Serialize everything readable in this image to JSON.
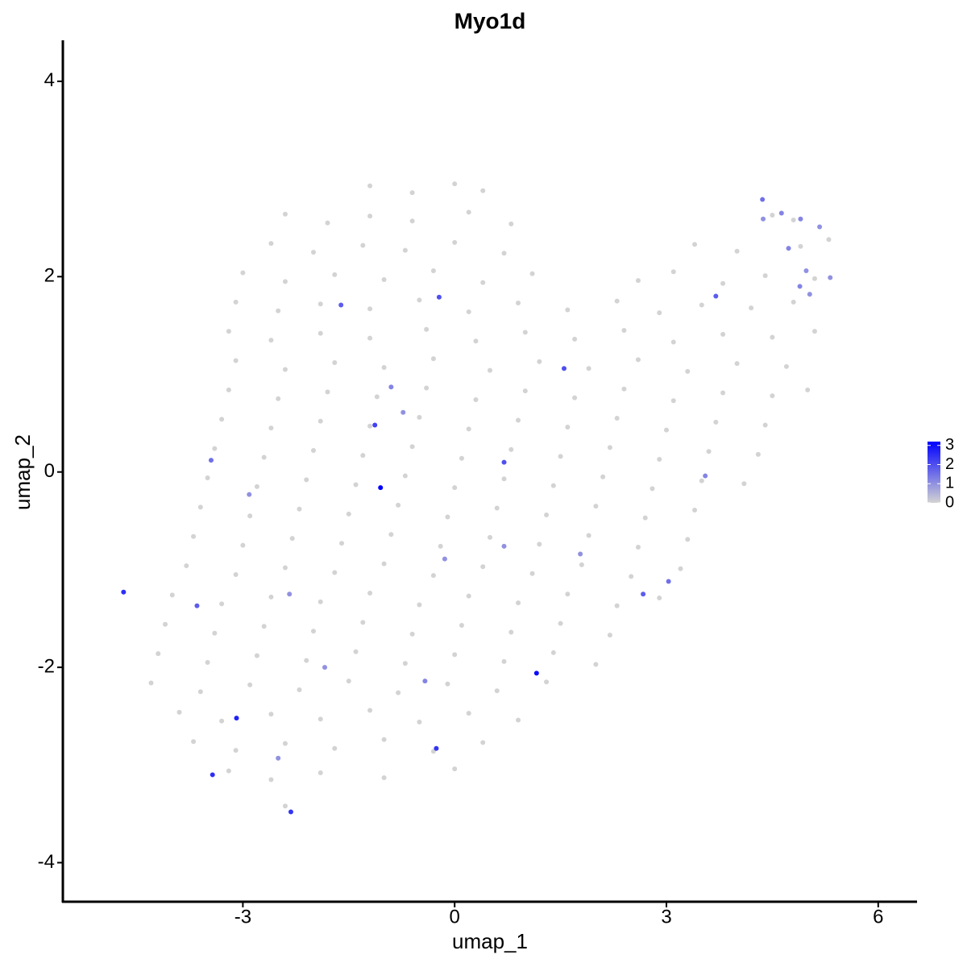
{
  "chart_data": {
    "type": "scatter",
    "title": "Myo1d",
    "x_label": "umap_1",
    "y_label": "umap_2",
    "x": [
      -1.2,
      -0.6,
      0,
      0.4,
      -2.4,
      -1.8,
      -1.2,
      -0.6,
      0.2,
      0.8,
      4.5,
      4.8,
      -2.6,
      -2.0,
      -1.3,
      -0.7,
      0,
      0.7,
      3.4,
      4.0,
      4.9,
      5.3,
      -3.0,
      -2.4,
      -1.7,
      -1.0,
      -0.3,
      0.4,
      1.1,
      2.6,
      3.1,
      3.8,
      4.4,
      5.1,
      -3.1,
      -2.5,
      -1.9,
      -1.2,
      -0.5,
      0.2,
      0.9,
      1.6,
      2.3,
      2.9,
      3.5,
      4.2,
      4.8,
      -3.2,
      -2.6,
      -1.9,
      -1.2,
      -0.4,
      0.3,
      1.0,
      1.7,
      2.4,
      3.1,
      3.8,
      4.5,
      5.1,
      -3.1,
      -2.4,
      -1.7,
      -1.0,
      -0.3,
      0.5,
      1.2,
      1.9,
      2.6,
      3.3,
      4.0,
      4.7,
      -3.2,
      -2.5,
      -1.8,
      -1.1,
      -0.4,
      0.3,
      1.0,
      1.7,
      2.4,
      3.1,
      3.8,
      4.5,
      5.0,
      -3.3,
      -2.6,
      -1.9,
      -1.2,
      -0.5,
      0.2,
      0.9,
      1.6,
      2.3,
      3.0,
      3.7,
      4.4,
      -3.4,
      -2.7,
      -2.0,
      -1.3,
      -0.6,
      0.1,
      0.8,
      1.5,
      2.2,
      2.9,
      3.6,
      4.3,
      -3.5,
      -2.8,
      -2.1,
      -1.4,
      -0.7,
      0,
      0.7,
      1.4,
      2.1,
      2.8,
      3.5,
      4.1,
      -3.6,
      -2.9,
      -2.2,
      -1.5,
      -0.8,
      -0.1,
      0.6,
      1.3,
      2.0,
      2.7,
      3.4,
      -3.7,
      -3.0,
      -2.3,
      -1.6,
      -0.9,
      -0.2,
      0.5,
      1.2,
      1.9,
      2.6,
      3.3,
      -3.8,
      -3.1,
      -2.4,
      -1.7,
      -1.0,
      -0.3,
      0.4,
      1.1,
      1.8,
      2.5,
      3.2,
      -4.0,
      -3.3,
      -2.6,
      -1.9,
      -1.2,
      -0.5,
      0.2,
      0.9,
      1.6,
      2.3,
      2.9,
      -4.1,
      -3.4,
      -2.7,
      -2.0,
      -1.3,
      -0.6,
      0.1,
      0.8,
      1.5,
      2.2,
      -4.2,
      -3.5,
      -2.8,
      -2.1,
      -1.4,
      -0.7,
      0,
      0.7,
      1.4,
      2.0,
      -4.3,
      -3.6,
      -2.9,
      -2.2,
      -1.5,
      -0.8,
      -0.1,
      0.6,
      1.3,
      -3.9,
      -3.3,
      -2.6,
      -1.9,
      -1.2,
      -0.5,
      0.2,
      0.9,
      -3.7,
      -3.1,
      -2.4,
      -1.7,
      -1.0,
      -0.3,
      0.4,
      -3.2,
      -2.6,
      -1.9,
      -1.0,
      0,
      -2.4,
      -4.69,
      -1.05,
      1.16,
      -3.09,
      -3.43,
      -2.32,
      -0.26,
      -1.13,
      0.7,
      1.55,
      -0.22,
      -1.61,
      3.7,
      4.36,
      4.63,
      4.9,
      5.17,
      4.73,
      4.98,
      4.89,
      5.03,
      -3.65,
      2.67,
      3.03,
      3.55,
      -3.45,
      -2.91,
      -2.5,
      -2.34,
      -0.42,
      -1.84,
      0.7,
      1.78,
      -0.14,
      -0.73,
      -0.9,
      4.37,
      5.32
    ],
    "y": [
      2.93,
      2.86,
      2.95,
      2.88,
      2.64,
      2.55,
      2.62,
      2.57,
      2.66,
      2.54,
      2.63,
      2.58,
      2.34,
      2.25,
      2.32,
      2.27,
      2.35,
      2.24,
      2.33,
      2.26,
      2.31,
      2.38,
      2.04,
      1.95,
      2.02,
      1.97,
      2.06,
      1.94,
      2.03,
      1.96,
      2.05,
      1.93,
      2.01,
      1.98,
      1.74,
      1.65,
      1.72,
      1.67,
      1.76,
      1.64,
      1.73,
      1.66,
      1.75,
      1.63,
      1.71,
      1.68,
      1.74,
      1.44,
      1.35,
      1.42,
      1.37,
      1.46,
      1.34,
      1.43,
      1.36,
      1.45,
      1.33,
      1.41,
      1.38,
      1.44,
      1.14,
      1.05,
      1.12,
      1.07,
      1.16,
      1.04,
      1.13,
      1.06,
      1.15,
      1.03,
      1.11,
      1.08,
      0.84,
      0.75,
      0.82,
      0.77,
      0.86,
      0.74,
      0.83,
      0.76,
      0.85,
      0.73,
      0.81,
      0.78,
      0.84,
      0.54,
      0.45,
      0.52,
      0.47,
      0.56,
      0.44,
      0.53,
      0.46,
      0.55,
      0.43,
      0.51,
      0.48,
      0.24,
      0.15,
      0.22,
      0.17,
      0.26,
      0.14,
      0.23,
      0.16,
      0.25,
      0.13,
      0.21,
      0.18,
      -0.06,
      -0.15,
      -0.08,
      -0.13,
      -0.04,
      -0.16,
      -0.07,
      -0.14,
      -0.05,
      -0.17,
      -0.09,
      -0.12,
      -0.36,
      -0.45,
      -0.38,
      -0.43,
      -0.34,
      -0.46,
      -0.37,
      -0.44,
      -0.35,
      -0.47,
      -0.39,
      -0.66,
      -0.75,
      -0.68,
      -0.73,
      -0.64,
      -0.76,
      -0.67,
      -0.74,
      -0.65,
      -0.77,
      -0.69,
      -0.96,
      -1.05,
      -0.98,
      -1.03,
      -0.94,
      -1.06,
      -0.97,
      -1.04,
      -0.95,
      -1.07,
      -0.99,
      -1.26,
      -1.35,
      -1.28,
      -1.33,
      -1.24,
      -1.36,
      -1.27,
      -1.34,
      -1.25,
      -1.37,
      -1.29,
      -1.56,
      -1.65,
      -1.58,
      -1.63,
      -1.54,
      -1.66,
      -1.57,
      -1.64,
      -1.55,
      -1.67,
      -1.86,
      -1.95,
      -1.88,
      -1.93,
      -1.84,
      -1.96,
      -1.87,
      -1.94,
      -1.85,
      -1.97,
      -2.16,
      -2.25,
      -2.18,
      -2.23,
      -2.14,
      -2.26,
      -2.17,
      -2.24,
      -2.15,
      -2.46,
      -2.55,
      -2.48,
      -2.53,
      -2.44,
      -2.56,
      -2.47,
      -2.54,
      -2.76,
      -2.85,
      -2.78,
      -2.83,
      -2.74,
      -2.86,
      -2.77,
      -3.06,
      -3.15,
      -3.08,
      -3.13,
      -3.04,
      -3.42,
      -1.23,
      -0.16,
      -2.06,
      -2.52,
      -3.1,
      -3.48,
      -2.83,
      0.48,
      0.1,
      1.06,
      1.79,
      1.71,
      1.8,
      2.79,
      2.65,
      2.59,
      2.51,
      2.29,
      2.06,
      1.9,
      1.82,
      -1.37,
      -1.25,
      -1.12,
      -0.04,
      0.12,
      -0.23,
      -2.93,
      -1.25,
      -2.14,
      -2.0,
      -0.76,
      -0.84,
      -0.89,
      0.61,
      0.87,
      2.59,
      1.99
    ],
    "values": [
      0,
      0,
      0,
      0,
      0,
      0,
      0,
      0,
      0,
      0,
      0,
      0,
      0,
      0,
      0,
      0,
      0,
      0,
      0,
      0,
      0,
      0,
      0,
      0,
      0,
      0,
      0,
      0,
      0,
      0,
      0,
      0,
      0,
      0,
      0,
      0,
      0,
      0,
      0,
      0,
      0,
      0,
      0,
      0,
      0,
      0,
      0,
      0,
      0,
      0,
      0,
      0,
      0,
      0,
      0,
      0,
      0,
      0,
      0,
      0,
      0,
      0,
      0,
      0,
      0,
      0,
      0,
      0,
      0,
      0,
      0,
      0,
      0,
      0,
      0,
      0,
      0,
      0,
      0,
      0,
      0,
      0,
      0,
      0,
      0,
      0,
      0,
      0,
      0,
      0,
      0,
      0,
      0,
      0,
      0,
      0,
      0,
      0,
      0,
      0,
      0,
      0,
      0,
      0,
      0,
      0,
      0,
      0,
      0,
      0,
      0,
      0,
      0,
      0,
      0,
      0,
      0,
      0,
      0,
      0,
      0,
      0,
      0,
      0,
      0,
      0,
      0,
      0,
      0,
      0,
      0,
      0,
      0,
      0,
      0,
      0,
      0,
      0,
      0,
      0,
      0,
      0,
      0,
      0,
      0,
      0,
      0,
      0,
      0,
      0,
      0,
      0,
      0,
      0,
      0,
      0,
      0,
      0,
      0,
      0,
      0,
      0,
      0,
      0,
      0,
      0,
      0,
      0,
      0,
      0,
      0,
      0,
      0,
      0,
      0,
      0,
      0,
      0,
      0,
      0,
      0,
      0,
      0,
      0,
      0,
      0,
      0,
      0,
      0,
      0,
      0,
      0,
      0,
      0,
      0,
      0,
      0,
      0,
      0,
      0,
      0,
      0,
      0,
      0,
      0,
      0,
      0,
      0,
      0,
      0,
      0,
      0,
      0,
      0,
      0,
      2.5,
      3.2,
      3.0,
      2.7,
      2.5,
      2.4,
      2.4,
      2.2,
      2.0,
      2.0,
      2.0,
      1.8,
      1.8,
      1.5,
      1.2,
      1.2,
      1.0,
      1.2,
      1.0,
      1.2,
      1.0,
      1.8,
      1.8,
      1.5,
      1.2,
      1.5,
      1.0,
      1.0,
      1.0,
      1.2,
      1.0,
      1.0,
      1.0,
      1.0,
      1.0,
      1.2,
      1.0,
      1.0
    ],
    "xlim": [
      -5.55,
      6.55
    ],
    "ylim": [
      -4.4,
      4.42
    ],
    "xticks": [
      -3,
      0,
      3,
      6
    ],
    "yticks": [
      -4,
      -2,
      0,
      2,
      4
    ],
    "colorbar": {
      "lim": [
        0,
        3.2
      ],
      "ticks": [
        0,
        1,
        2,
        3
      ],
      "low_color": "#d3d3d3",
      "high_color": "#0000ff"
    }
  }
}
